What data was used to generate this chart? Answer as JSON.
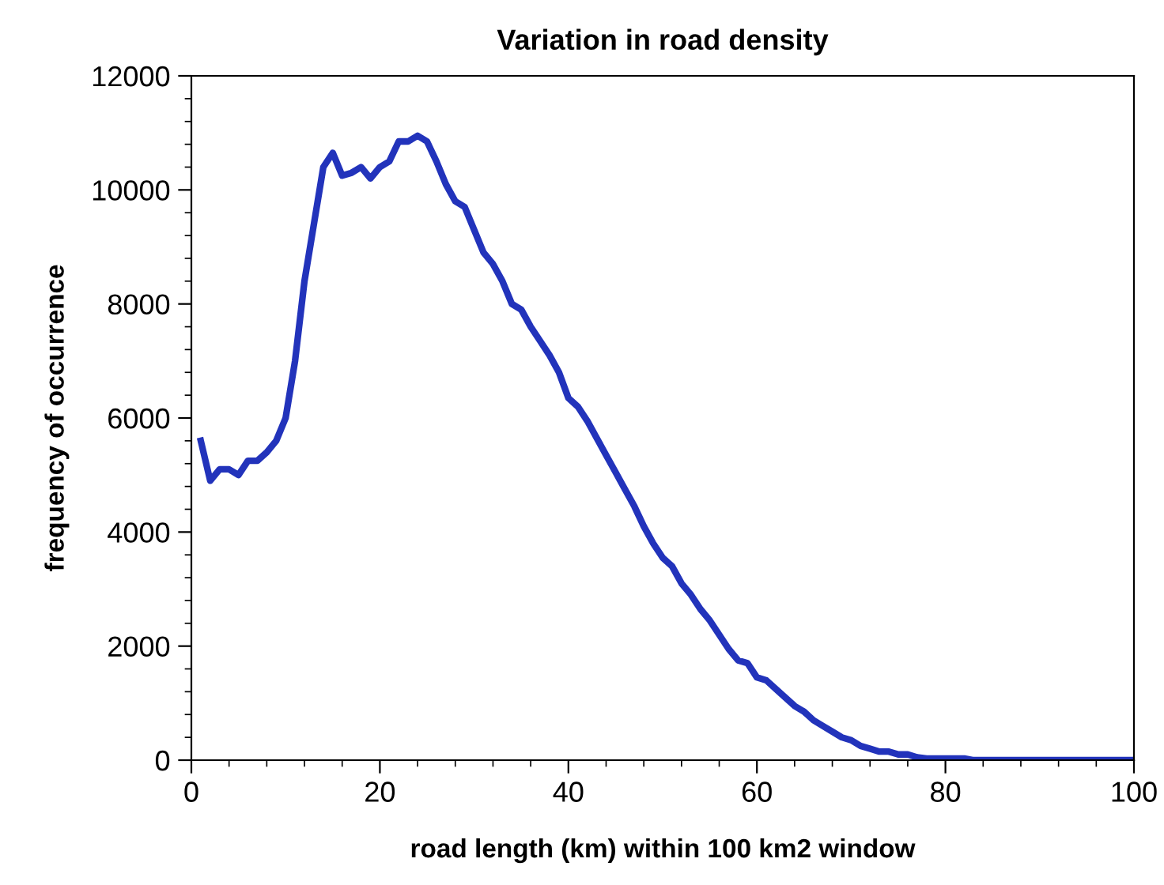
{
  "chart_data": {
    "type": "line",
    "title": "Variation in road density",
    "xlabel": "road length (km) within 100 km2 window",
    "ylabel": "frequency of occurrence",
    "x": [
      1,
      2,
      3,
      4,
      5,
      6,
      7,
      8,
      9,
      10,
      11,
      12,
      13,
      14,
      15,
      16,
      17,
      18,
      19,
      20,
      21,
      22,
      23,
      24,
      25,
      26,
      27,
      28,
      29,
      30,
      31,
      32,
      33,
      34,
      35,
      36,
      37,
      38,
      39,
      40,
      41,
      42,
      43,
      44,
      45,
      46,
      47,
      48,
      49,
      50,
      51,
      52,
      53,
      54,
      55,
      56,
      57,
      58,
      59,
      60,
      61,
      62,
      63,
      64,
      65,
      66,
      67,
      68,
      69,
      70,
      71,
      72,
      73,
      74,
      75,
      76,
      77,
      78,
      79,
      80,
      81,
      82,
      83,
      84,
      85,
      86,
      87,
      88,
      89,
      90,
      91,
      92,
      93,
      94,
      95,
      96,
      97,
      98,
      99,
      100
    ],
    "series": [
      {
        "color": "#2233bb",
        "values": [
          5600,
          4900,
          5100,
          5100,
          5000,
          5250,
          5250,
          5400,
          5600,
          6000,
          7000,
          8400,
          9400,
          10400,
          10650,
          10250,
          10300,
          10400,
          10200,
          10400,
          10500,
          10850,
          10850,
          10950,
          10850,
          10500,
          10100,
          9800,
          9700,
          9300,
          8900,
          8700,
          8400,
          8000,
          7900,
          7600,
          7350,
          7100,
          6800,
          6350,
          6200,
          5950,
          5650,
          5350,
          5050,
          4750,
          4450,
          4100,
          3800,
          3550,
          3400,
          3100,
          2900,
          2650,
          2450,
          2200,
          1950,
          1750,
          1700,
          1450,
          1400,
          1250,
          1100,
          950,
          850,
          700,
          600,
          500,
          400,
          350,
          250,
          200,
          150,
          150,
          100,
          100,
          50,
          30,
          30,
          30,
          30,
          30,
          0,
          0,
          0,
          0,
          0,
          0,
          0,
          0,
          0,
          0,
          0,
          0,
          0,
          0,
          0,
          0,
          0,
          0
        ]
      }
    ],
    "xlim": [
      0,
      100
    ],
    "ylim": [
      0,
      12000
    ],
    "xticks": [
      0,
      20,
      40,
      60,
      80,
      100
    ],
    "yticks": [
      0,
      2000,
      4000,
      6000,
      8000,
      10000,
      12000
    ],
    "grid": false,
    "legend": false,
    "marker": "none",
    "line_style": "solid"
  }
}
